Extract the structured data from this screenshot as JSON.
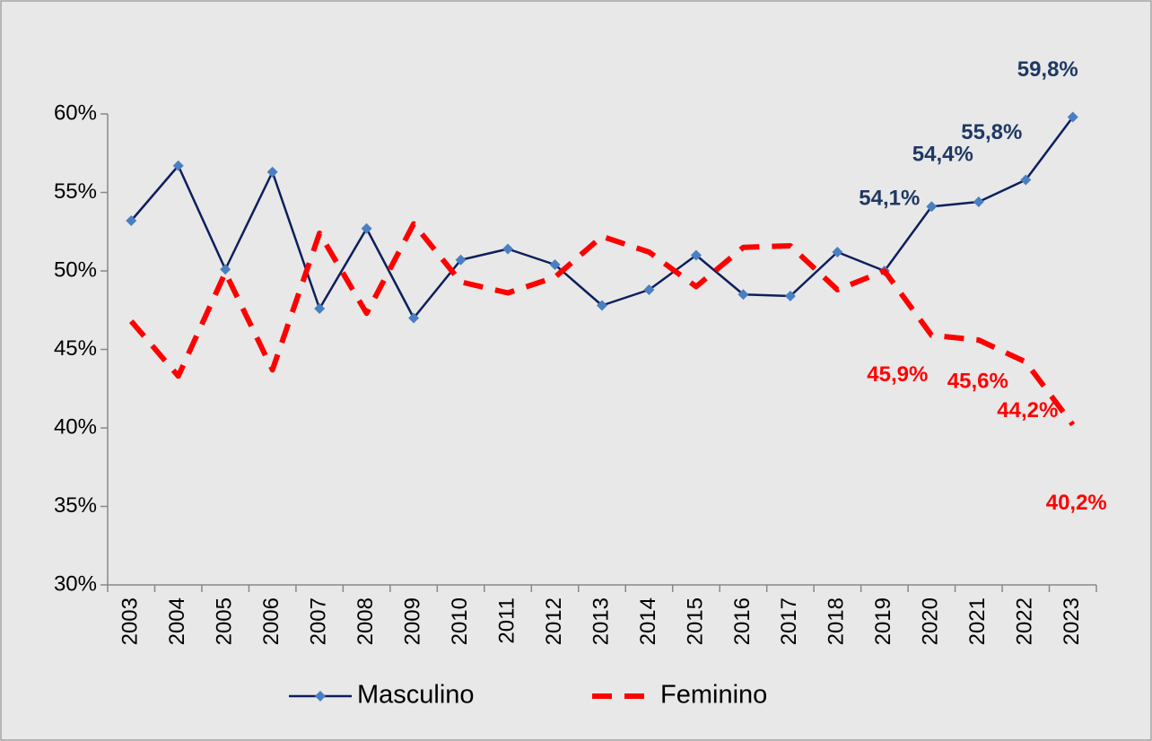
{
  "chart_data": {
    "type": "line",
    "categories": [
      "2003",
      "2004",
      "2005",
      "2006",
      "2007",
      "2008",
      "2009",
      "2010",
      "2011",
      "2012",
      "2013",
      "2014",
      "2015",
      "2016",
      "2017",
      "2018",
      "2019",
      "2020",
      "2021",
      "2022",
      "2023"
    ],
    "series": [
      {
        "name": "Masculino",
        "color": "#0d1f5c",
        "marker_color": "#4a7fc1",
        "label_color": "#1f3864",
        "values": [
          53.2,
          56.7,
          50.1,
          56.3,
          47.6,
          52.7,
          47.0,
          50.7,
          51.4,
          50.4,
          47.8,
          48.8,
          51.0,
          48.5,
          48.4,
          51.2,
          50.0,
          54.1,
          54.4,
          55.8,
          59.8
        ],
        "value_labels": [
          null,
          null,
          null,
          null,
          null,
          null,
          null,
          null,
          null,
          null,
          null,
          null,
          null,
          null,
          null,
          null,
          null,
          "54,1%",
          "54,4%",
          "55,8%",
          "59,8%"
        ]
      },
      {
        "name": "Feminino",
        "color": "#ff0000",
        "dashed": true,
        "label_color": "#ff0000",
        "values": [
          46.8,
          43.3,
          49.9,
          43.7,
          52.4,
          47.3,
          53.0,
          49.3,
          48.6,
          49.6,
          52.2,
          51.2,
          49.0,
          51.5,
          51.6,
          48.8,
          50.0,
          45.9,
          45.6,
          44.2,
          40.2
        ],
        "value_labels": [
          null,
          null,
          null,
          null,
          null,
          null,
          null,
          null,
          null,
          null,
          null,
          null,
          null,
          null,
          null,
          null,
          null,
          "45,9%",
          "45,6%",
          "44,2%",
          "40,2%"
        ]
      }
    ],
    "ylim": [
      30,
      60
    ],
    "yticks": [
      {
        "value": 30,
        "label": "30%"
      },
      {
        "value": 35,
        "label": "35%"
      },
      {
        "value": 40,
        "label": "40%"
      },
      {
        "value": 45,
        "label": "45%"
      },
      {
        "value": 50,
        "label": "50%"
      },
      {
        "value": 55,
        "label": "55%"
      },
      {
        "value": 60,
        "label": "60%"
      }
    ],
    "legend": "bottom"
  }
}
